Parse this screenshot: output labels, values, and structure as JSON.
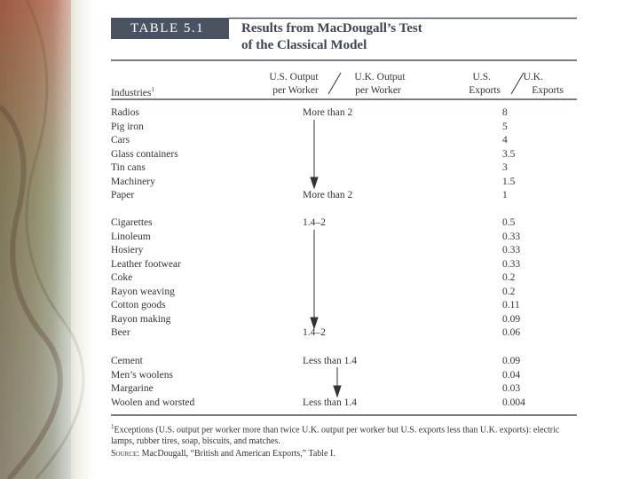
{
  "table": {
    "label": "TABLE 5.1",
    "title_lines": [
      "Results from MacDougall’s Test",
      "of the Classical Model"
    ],
    "header": {
      "industries": "Industries",
      "industries_note": "1",
      "us_output": [
        "U.S. Output",
        "per Worker"
      ],
      "uk_output": [
        "U.K. Output",
        "per Worker"
      ],
      "us_exports": [
        "U.S.",
        "Exports"
      ],
      "uk_exports": [
        "U.K.",
        "Exports"
      ]
    },
    "groups": [
      [
        {
          "industry": "Radios",
          "output": "More than 2",
          "exports": "8"
        },
        {
          "industry": "Pig iron",
          "exports": "5"
        },
        {
          "industry": "Cars",
          "exports": "4"
        },
        {
          "industry": "Glass containers",
          "exports": "3.5"
        },
        {
          "industry": "Tin cans",
          "exports": "3"
        },
        {
          "industry": "Machinery",
          "exports": "1.5"
        },
        {
          "industry": "Paper",
          "output": "More than 2",
          "exports": "1"
        }
      ],
      [
        {
          "industry": "Cigarettes",
          "output": "1.4–2",
          "exports": "0.5"
        },
        {
          "industry": "Linoleum",
          "exports": "0.33"
        },
        {
          "industry": "Hosiery",
          "exports": "0.33"
        },
        {
          "industry": "Leather footwear",
          "exports": "0.33"
        },
        {
          "industry": "Coke",
          "exports": "0.2"
        },
        {
          "industry": "Rayon weaving",
          "exports": "0.2"
        },
        {
          "industry": "Cotton goods",
          "exports": "0.11"
        },
        {
          "industry": "Rayon making",
          "exports": "0.09"
        },
        {
          "industry": "Beer",
          "output": "1.4–2",
          "exports": "0.06"
        }
      ],
      [
        {
          "industry": "Cement",
          "output": "Less than 1.4",
          "exports": "0.09"
        },
        {
          "industry": "Men’s woolens",
          "exports": "0.04"
        },
        {
          "industry": "Margarine",
          "exports": "0.03"
        },
        {
          "industry": "Woolen and worsted",
          "output": "Less than 1.4",
          "exports": "0.004"
        }
      ]
    ],
    "footnote_mark": "1",
    "footnote": "Exceptions (U.S. output per worker more than twice U.K. output per worker but U.S. exports less than U.K. exports): electric lamps, rubber tires, soap, biscuits, and matches.",
    "source_label": "Source",
    "source": ": MacDougall, “British and American Exports,” Table I."
  }
}
